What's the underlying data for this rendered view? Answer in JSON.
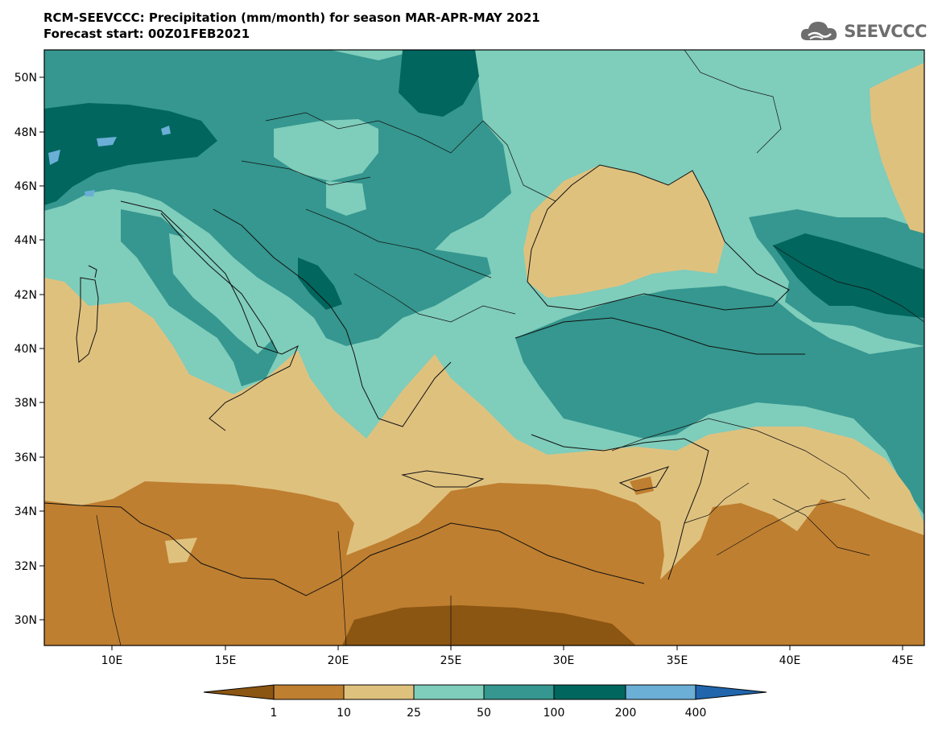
{
  "header": {
    "title_line1": "RCM-SEEVCCC: Precipitation (mm/month) for season MAR-APR-MAY 2021",
    "title_line2": "Forecast start: 00Z01FEB2021",
    "logo_text": "SEEVCCC"
  },
  "map": {
    "lat_labels": [
      "50N",
      "48N",
      "46N",
      "44N",
      "42N",
      "40N",
      "38N",
      "36N",
      "34N",
      "32N",
      "30N"
    ],
    "lon_labels": [
      "10E",
      "15E",
      "20E",
      "25E",
      "30E",
      "35E",
      "40E",
      "45E"
    ]
  },
  "legend": {
    "labels": [
      "1",
      "10",
      "25",
      "50",
      "100",
      "200",
      "400"
    ],
    "colors": [
      "#8b5512",
      "#bf7f30",
      "#dfc17e",
      "#7fcdbb",
      "#35978f",
      "#01665e",
      "#6baed6",
      "#2166ac"
    ]
  }
}
